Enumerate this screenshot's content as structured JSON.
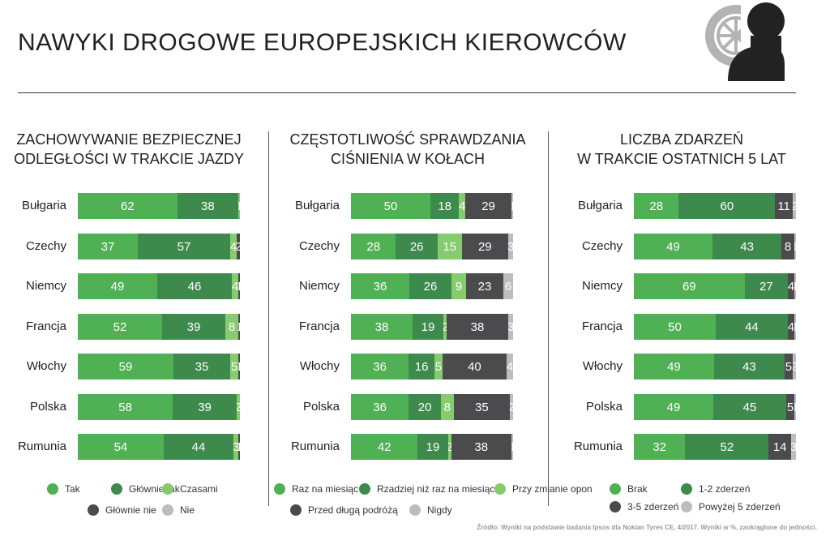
{
  "title": "NAWYKI DROGOWE EUROPEJSKICH KIEROWCÓW",
  "source": "Źródło: Wyniki na podstawie badania Ipsos dla Nokian Tyres CE, 4/2017. Wyniki w %, zaokrąglone do jedności.",
  "icons": [
    "tyre-icon",
    "driver-icon"
  ],
  "chart_data": [
    {
      "type": "bar",
      "stacked": true,
      "orientation": "horizontal",
      "title_lines": [
        "ZACHOWYWANIE BEZPIECZNEJ",
        "ODLEGŁOŚCI W TRAKCIE JAZDY"
      ],
      "categories": [
        "Bułgaria",
        "Czechy",
        "Niemcy",
        "Francja",
        "Włochy",
        "Polska",
        "Rumunia"
      ],
      "series": [
        {
          "name": "Tak",
          "color": "#4fb153",
          "values": [
            62,
            37,
            49,
            52,
            59,
            58,
            54
          ]
        },
        {
          "name": "Głównie tak",
          "color": "#3d8a4c",
          "values": [
            38,
            57,
            46,
            39,
            35,
            39,
            44
          ]
        },
        {
          "name": "Czasami",
          "color": "#86cc6e",
          "values": [
            1,
            4,
            4,
            8,
            5,
            2,
            3
          ]
        },
        {
          "name": "Głównie nie",
          "color": "#4b4b4d",
          "values": [
            0,
            2,
            1,
            1,
            1,
            0,
            1
          ]
        },
        {
          "name": "Nie",
          "color": "#bdbdbd",
          "values": [
            0,
            0,
            0,
            0,
            0,
            0,
            0
          ]
        }
      ],
      "xlim": [
        0,
        100
      ]
    },
    {
      "type": "bar",
      "stacked": true,
      "orientation": "horizontal",
      "title_lines": [
        "CZĘSTOTLIWOŚĆ SPRAWDZANIA",
        "CIŚNIENIA W KOŁACH"
      ],
      "categories": [
        "Bułgaria",
        "Czechy",
        "Niemcy",
        "Francja",
        "Włochy",
        "Polska",
        "Rumunia"
      ],
      "series": [
        {
          "name": "Raz na miesiąc",
          "color": "#4fb153",
          "values": [
            50,
            28,
            36,
            38,
            36,
            36,
            42
          ]
        },
        {
          "name": "Rzadziej niż raz na miesiąc",
          "color": "#3d8a4c",
          "values": [
            18,
            26,
            26,
            19,
            16,
            20,
            19
          ]
        },
        {
          "name": "Przy zmianie opon",
          "color": "#86cc6e",
          "values": [
            4,
            15,
            9,
            2,
            5,
            8,
            2
          ]
        },
        {
          "name": "Przed długą podróżą",
          "color": "#4b4b4d",
          "values": [
            29,
            29,
            23,
            38,
            40,
            35,
            38
          ]
        },
        {
          "name": "Nigdy",
          "color": "#bdbdbd",
          "values": [
            1,
            3,
            6,
            3,
            4,
            2,
            1
          ]
        }
      ],
      "xlim": [
        0,
        100
      ]
    },
    {
      "type": "bar",
      "stacked": true,
      "orientation": "horizontal",
      "title_lines": [
        "LICZBA ZDARZEŃ",
        "W TRAKCIE OSTATNICH 5 LAT"
      ],
      "categories": [
        "Bułgaria",
        "Czechy",
        "Niemcy",
        "Francja",
        "Włochy",
        "Polska",
        "Rumunia"
      ],
      "series": [
        {
          "name": "Brak",
          "color": "#4fb153",
          "values": [
            28,
            49,
            69,
            50,
            49,
            49,
            32
          ]
        },
        {
          "name": "1-2 zderzeń",
          "color": "#3d8a4c",
          "values": [
            60,
            43,
            27,
            44,
            43,
            45,
            52
          ]
        },
        {
          "name": "3-5 zderzeń",
          "color": "#4b4b4d",
          "values": [
            11,
            8,
            4,
            4,
            5,
            5,
            14
          ]
        },
        {
          "name": "Powyżej 5 zderzeń",
          "color": "#bdbdbd",
          "values": [
            2,
            1,
            1,
            1,
            2,
            1,
            3
          ]
        }
      ],
      "xlim": [
        0,
        100
      ]
    }
  ]
}
